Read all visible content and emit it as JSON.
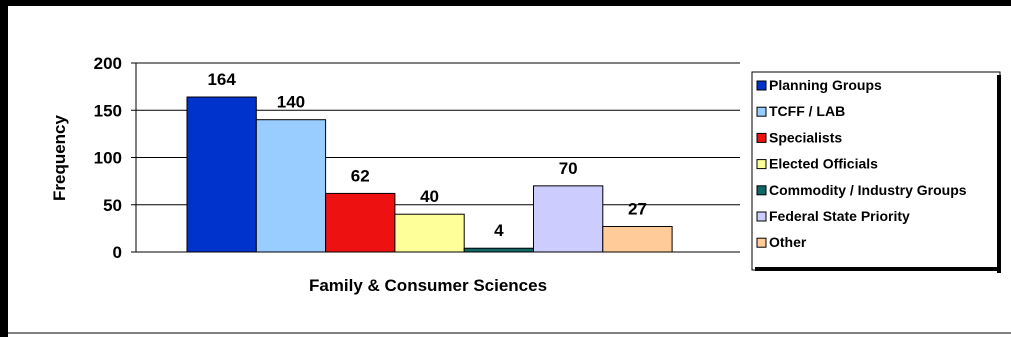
{
  "chart_data": {
    "type": "bar",
    "title": "",
    "xlabel": "Family & Consumer Sciences",
    "ylabel": "Frequency",
    "ylim": [
      0,
      200
    ],
    "yticks": [
      0,
      50,
      100,
      150,
      200
    ],
    "grid": true,
    "legend_position": "right",
    "categories": [
      "Family & Consumer Sciences"
    ],
    "series": [
      {
        "name": "Planning Groups",
        "values": [
          164
        ],
        "color": "#0033cc"
      },
      {
        "name": "TCFF / LAB",
        "values": [
          140
        ],
        "color": "#99ccff"
      },
      {
        "name": "Specialists",
        "values": [
          62
        ],
        "color": "#ee1111"
      },
      {
        "name": "Elected Officials",
        "values": [
          40
        ],
        "color": "#ffff99"
      },
      {
        "name": "Commodity / Industry Groups",
        "values": [
          4
        ],
        "color": "#116666"
      },
      {
        "name": "Federal State Priority",
        "values": [
          70
        ],
        "color": "#ccccff"
      },
      {
        "name": "Other",
        "values": [
          27
        ],
        "color": "#ffcc99"
      }
    ]
  }
}
